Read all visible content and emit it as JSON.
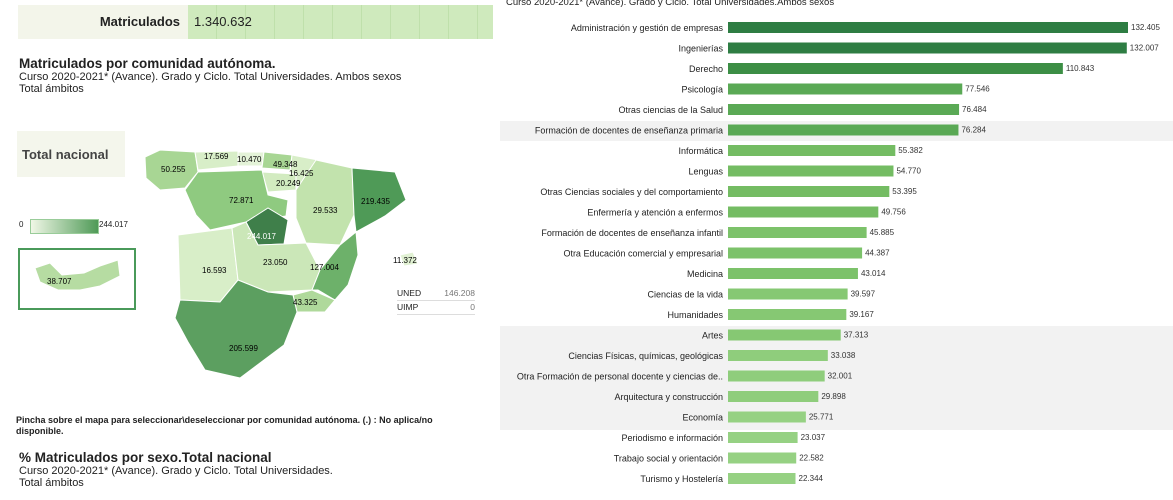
{
  "summary": {
    "label": "Matriculados",
    "value": "1.340.632"
  },
  "map_section": {
    "title": "Matriculados por comunidad autónoma.",
    "subtitle": "Curso 2020-2021* (Avance). Grado y Ciclo. Total Universidades. Ambos sexos",
    "scope": "Total ámbitos",
    "national_button": "Total nacional",
    "legend": {
      "min": "0",
      "max": "244.017"
    },
    "regions": [
      {
        "id": "galicia",
        "value": "50.255",
        "color": "#a8d694"
      },
      {
        "id": "asturias",
        "value": "17.569",
        "color": "#d8eec8"
      },
      {
        "id": "cantabria",
        "value": "10.470",
        "color": "#e4f3d8"
      },
      {
        "id": "pais-vasco",
        "value": "49.348",
        "color": "#a8d694"
      },
      {
        "id": "navarra",
        "value": "16.425",
        "color": "#d8eec8"
      },
      {
        "id": "la-rioja",
        "value": "20.249",
        "color": "#d2ebc0"
      },
      {
        "id": "castilla-leon",
        "value": "72.871",
        "color": "#8fca80"
      },
      {
        "id": "aragon",
        "value": "29.533",
        "color": "#c2e3ad"
      },
      {
        "id": "cataluna",
        "value": "219.435",
        "color": "#4f9a57"
      },
      {
        "id": "madrid",
        "value": "244.017",
        "color": "#3f7f4a"
      },
      {
        "id": "extremadura",
        "value": "16.593",
        "color": "#d8eec8"
      },
      {
        "id": "castilla-la-mancha",
        "value": "23.050",
        "color": "#cbe7b8"
      },
      {
        "id": "valencia",
        "value": "127.004",
        "color": "#6db16a"
      },
      {
        "id": "murcia",
        "value": "43.325",
        "color": "#afd99b"
      },
      {
        "id": "andalucia",
        "value": "205.599",
        "color": "#5c9f60"
      },
      {
        "id": "baleares",
        "value": "11.372",
        "color": "#e1f1d3"
      },
      {
        "id": "canarias",
        "value": "38.707",
        "color": "#b6dca2"
      }
    ],
    "extra_table": [
      {
        "label": "UNED",
        "value": "146.208"
      },
      {
        "label": "UIMP",
        "value": "0"
      }
    ],
    "note": "Pincha sobre el mapa para seleccionar\\deseleccionar por comunidad autónoma. (.) : No aplica/no disponible."
  },
  "sex_section": {
    "title": "% Matriculados por sexo.Total nacional",
    "subtitle": "Curso 2020-2021* (Avance). Grado y Ciclo. Total Universidades.",
    "scope": "Total ámbitos"
  },
  "chart_top_caption": "Curso 2020-2021* (Avance). Grado y Ciclo. Total Universidades.Ambos sexos",
  "chart_data": {
    "type": "bar",
    "orientation": "horizontal",
    "categories": [
      "Administración y gestión de empresas",
      "Ingenierías",
      "Derecho",
      "Psicología",
      "Otras ciencias de la Salud",
      "Formación de docentes de enseñanza primaria",
      "Informática",
      "Lenguas",
      "Otras Ciencias sociales y del comportamiento",
      "Enfermería y atención a enfermos",
      "Formación de docentes de enseñanza infantil",
      "Otra Educación comercial y empresarial",
      "Medicina",
      "Ciencias de la vida",
      "Humanidades",
      "Artes",
      "Ciencias Físicas, químicas, geológicas",
      "Otra Formación de personal docente y ciencias de..",
      "Arquitectura y construcción",
      "Economía",
      "Periodismo e información",
      "Trabajo social y orientación",
      "Turismo y Hostelería"
    ],
    "values": [
      132405,
      132007,
      110843,
      77546,
      76484,
      76284,
      55382,
      54770,
      53395,
      49756,
      45885,
      44387,
      43014,
      39597,
      39167,
      37313,
      33038,
      32001,
      29898,
      25771,
      23037,
      22582,
      22344
    ],
    "value_labels": [
      "132.405",
      "132.007",
      "110.843",
      "77.546",
      "76.484",
      "76.284",
      "55.382",
      "54.770",
      "53.395",
      "49.756",
      "45.885",
      "44.387",
      "43.014",
      "39.597",
      "39.167",
      "37.313",
      "33.038",
      "32.001",
      "29.898",
      "25.771",
      "23.037",
      "22.582",
      "22.344"
    ],
    "colors": [
      "#2e7d43",
      "#2e7d43",
      "#3c8e45",
      "#5aa955",
      "#5aa955",
      "#5aa955",
      "#74bc63",
      "#74bc63",
      "#74bc63",
      "#74bc63",
      "#7cc26a",
      "#7cc26a",
      "#7cc26a",
      "#86c873",
      "#86c873",
      "#86c873",
      "#8fcd7c",
      "#8fcd7c",
      "#8fcd7c",
      "#96d183",
      "#96d183",
      "#96d183",
      "#96d183"
    ],
    "xlim": [
      0,
      132405
    ]
  }
}
